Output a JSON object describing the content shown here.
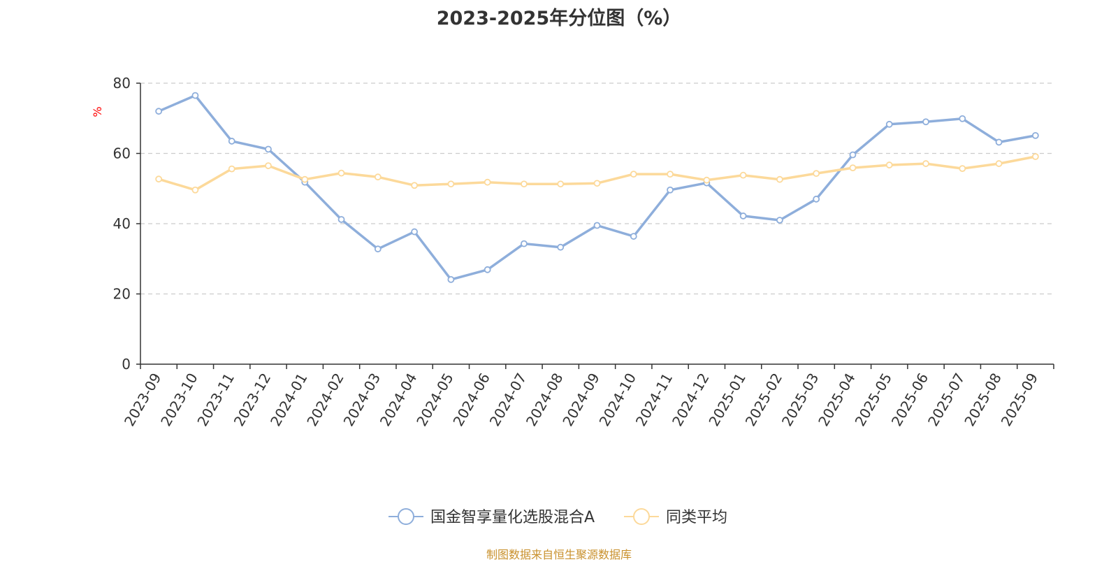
{
  "chart_data": {
    "type": "line",
    "title": "2023-2025年分位图（%）",
    "ylabel": "%",
    "xlabel": "",
    "ylim": [
      0,
      80
    ],
    "yticks": [
      0,
      20,
      40,
      60,
      80
    ],
    "grid": true,
    "legend_position": "bottom-center",
    "categories": [
      "2023-09",
      "2023-10",
      "2023-11",
      "2023-12",
      "2024-01",
      "2024-02",
      "2024-03",
      "2024-04",
      "2024-05",
      "2024-06",
      "2024-07",
      "2024-08",
      "2024-09",
      "2024-10",
      "2024-11",
      "2024-12",
      "2025-01",
      "2025-02",
      "2025-03",
      "2025-04",
      "2025-05",
      "2025-06",
      "2025-07",
      "2025-08",
      "2025-09"
    ],
    "series": [
      {
        "name": "国金智享量化选股混合A",
        "color": "#8eaedb",
        "values": [
          72,
          76.5,
          63.5,
          61.2,
          51.8,
          41.2,
          32.8,
          37.7,
          24.1,
          26.9,
          34.3,
          33.3,
          39.5,
          36.4,
          49.6,
          51.6,
          42.2,
          41.0,
          47.0,
          59.6,
          68.3,
          69.0,
          69.9,
          63.2,
          65.1
        ]
      },
      {
        "name": "同类平均",
        "color": "#fcd99a",
        "values": [
          52.7,
          49.6,
          55.6,
          56.5,
          52.6,
          54.4,
          53.3,
          50.9,
          51.3,
          51.8,
          51.3,
          51.3,
          51.5,
          54.1,
          54.1,
          52.4,
          53.8,
          52.6,
          54.3,
          55.9,
          56.7,
          57.1,
          55.7,
          57.1,
          59.1
        ]
      }
    ]
  },
  "footer": {
    "source": "制图数据来自恒生聚源数据库"
  }
}
